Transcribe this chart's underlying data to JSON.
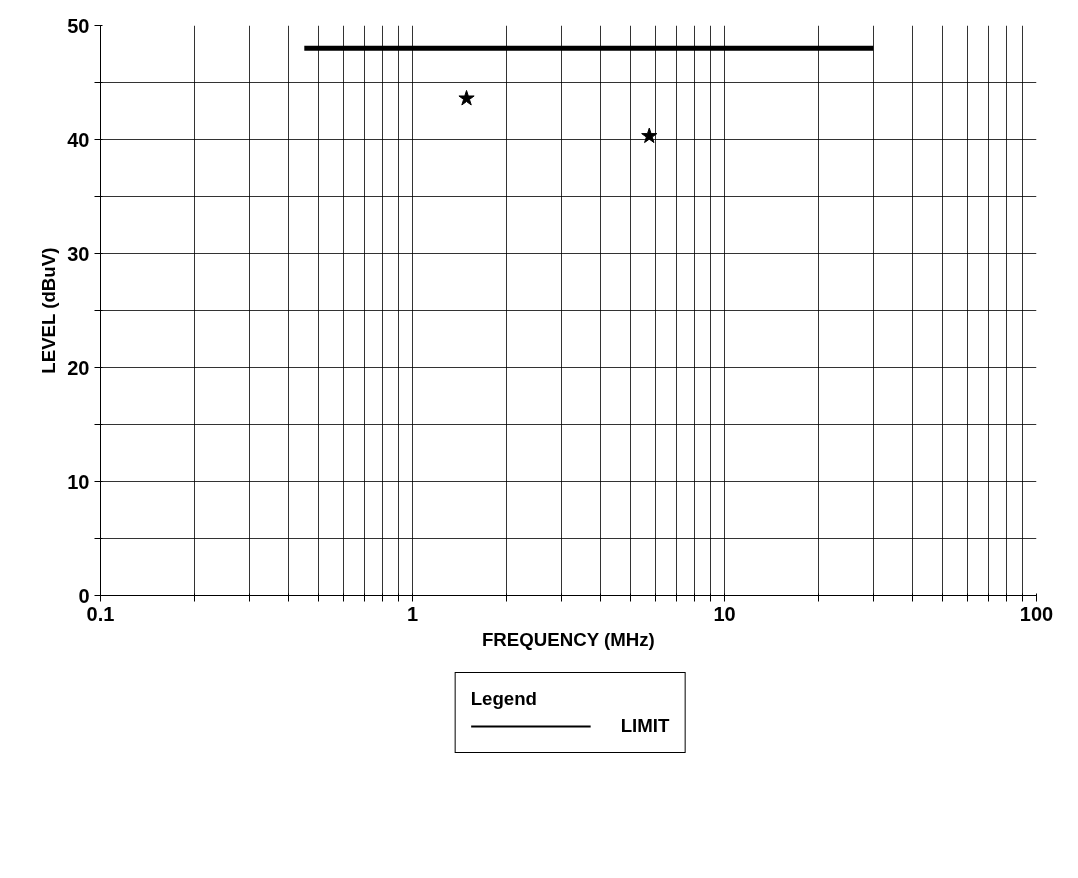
{
  "chart_data": {
    "type": "line",
    "xlabel": "FREQUENCY (MHz)",
    "ylabel": "LEVEL (dBuV)",
    "log": "x",
    "xlim": [
      0.1,
      100
    ],
    "ylim": [
      0,
      50
    ],
    "xticks": [
      0.1,
      {
        "value": 0.2,
        "label": null
      },
      {
        "value": 0.3,
        "label": null
      },
      {
        "value": 0.4,
        "label": null
      },
      {
        "value": 0.5,
        "label": null
      },
      {
        "value": 0.6,
        "label": null
      },
      {
        "value": 0.7,
        "label": null
      },
      {
        "value": 0.8,
        "label": null
      },
      {
        "value": 0.9,
        "label": null
      },
      1,
      {
        "value": 2,
        "label": null
      },
      {
        "value": 3,
        "label": null
      },
      {
        "value": 4,
        "label": null
      },
      {
        "value": 5,
        "label": null
      },
      {
        "value": 6,
        "label": null
      },
      {
        "value": 7,
        "label": null
      },
      {
        "value": 8,
        "label": null
      },
      {
        "value": 9,
        "label": null
      },
      10,
      {
        "value": 20,
        "label": null
      },
      {
        "value": 30,
        "label": null
      },
      {
        "value": 40,
        "label": null
      },
      {
        "value": 50,
        "label": null
      },
      {
        "value": 60,
        "label": null
      },
      {
        "value": 70,
        "label": null
      },
      {
        "value": 80,
        "label": null
      },
      {
        "value": 90,
        "label": null
      },
      100
    ],
    "yticks": [
      0,
      {
        "value": 5,
        "label": null
      },
      10,
      {
        "value": 15,
        "label": null
      },
      20,
      {
        "value": 25,
        "label": null
      },
      30,
      {
        "value": 35,
        "label": null
      },
      40,
      {
        "value": 45,
        "label": null
      },
      50
    ],
    "grid": true,
    "legend": "bottom",
    "legend_title": "Legend",
    "series": [
      {
        "name": "LIMIT",
        "color": "#000000",
        "x": [
          0.45,
          30
        ],
        "values": [
          48,
          48
        ],
        "line_style": "solid"
      },
      {
        "type": "scatter",
        "color": "#000000",
        "marker": "star",
        "x": [
          1.49,
          5.74
        ],
        "values": [
          43.6,
          40.3
        ]
      }
    ]
  }
}
